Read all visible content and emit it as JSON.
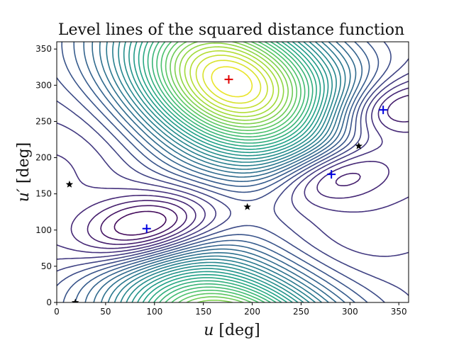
{
  "chart_data": {
    "type": "contour",
    "title": "Level lines of the squared distance function",
    "xlabel": {
      "var": "u",
      "unit": " [deg]"
    },
    "ylabel": {
      "var": "u′",
      "unit": " [deg]"
    },
    "xlim": [
      0,
      360
    ],
    "ylim": [
      0,
      360
    ],
    "xticks": [
      0,
      50,
      100,
      150,
      200,
      250,
      300,
      350
    ],
    "yticks": [
      0,
      50,
      100,
      150,
      200,
      250,
      300,
      350
    ],
    "colormap": [
      "#440154",
      "#46327e",
      "#365c8d",
      "#277f8e",
      "#1fa187",
      "#4ac16d",
      "#a0da39",
      "#fde725"
    ],
    "critical_points": {
      "maximum": {
        "color": "#e00000",
        "marker": "plus",
        "points": [
          [
            176,
            308
          ]
        ]
      },
      "minima": {
        "color": "#0000e0",
        "marker": "plus",
        "points": [
          [
            92,
            102
          ],
          [
            281,
            177
          ],
          [
            334,
            266
          ]
        ]
      },
      "saddles": {
        "color": "#000000",
        "marker": "star",
        "points": [
          [
            13,
            163
          ],
          [
            195,
            132
          ],
          [
            309,
            216
          ],
          [
            19,
            0
          ]
        ]
      }
    }
  }
}
